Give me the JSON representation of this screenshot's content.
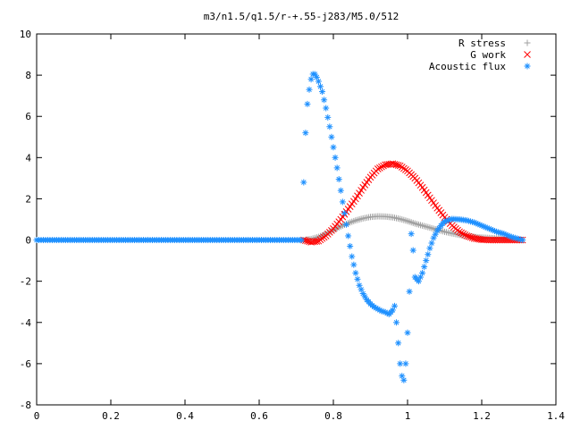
{
  "chart_data": {
    "type": "scatter",
    "title": "m3/n1.5/q1.5/r-+.55-j283/M5.0/512",
    "xlabel": "",
    "ylabel": "",
    "xlim": [
      0,
      1.4
    ],
    "ylim": [
      -8,
      10
    ],
    "xticks": [
      "0",
      "0.2",
      "0.4",
      "0.6",
      "0.8",
      "1",
      "1.2",
      "1.4"
    ],
    "yticks": [
      "-8",
      "-6",
      "-4",
      "-2",
      "0",
      "2",
      "4",
      "6",
      "8",
      "10"
    ],
    "grid": false,
    "legend_position": "top-right",
    "series": [
      {
        "name": "R stress",
        "marker": "+",
        "color": "#a0a0a0",
        "x": [
          0.72,
          0.74,
          0.76,
          0.78,
          0.8,
          0.82,
          0.84,
          0.86,
          0.88,
          0.9,
          0.92,
          0.94,
          0.96,
          0.98,
          1.0,
          1.02,
          1.04,
          1.06,
          1.08,
          1.1,
          1.12,
          1.14,
          1.16,
          1.18,
          1.2,
          1.22,
          1.24,
          1.26,
          1.28,
          1.3,
          1.31
        ],
        "y": [
          0.0,
          0.05,
          0.15,
          0.3,
          0.48,
          0.66,
          0.82,
          0.95,
          1.05,
          1.12,
          1.15,
          1.14,
          1.1,
          1.02,
          0.92,
          0.8,
          0.7,
          0.6,
          0.5,
          0.4,
          0.32,
          0.25,
          0.19,
          0.15,
          0.12,
          0.1,
          0.08,
          0.06,
          0.04,
          0.02,
          0.0
        ]
      },
      {
        "name": "G work",
        "marker": "x",
        "color": "#ff0000",
        "x": [
          0.72,
          0.74,
          0.76,
          0.78,
          0.8,
          0.82,
          0.84,
          0.86,
          0.88,
          0.9,
          0.92,
          0.94,
          0.96,
          0.98,
          1.0,
          1.02,
          1.04,
          1.06,
          1.08,
          1.1,
          1.12,
          1.14,
          1.16,
          1.18,
          1.2,
          1.22,
          1.24,
          1.26,
          1.28,
          1.3,
          1.31
        ],
        "y": [
          0.0,
          -0.1,
          -0.05,
          0.2,
          0.55,
          1.0,
          1.5,
          2.0,
          2.55,
          3.05,
          3.45,
          3.65,
          3.7,
          3.6,
          3.35,
          3.0,
          2.55,
          2.05,
          1.55,
          1.1,
          0.7,
          0.4,
          0.2,
          0.08,
          0.02,
          0.0,
          0.0,
          0.0,
          0.0,
          0.0,
          0.0
        ]
      },
      {
        "name": "Acoustic flux",
        "marker": "*",
        "color": "#1e90ff",
        "x": [
          0.72,
          0.725,
          0.73,
          0.735,
          0.74,
          0.745,
          0.75,
          0.755,
          0.76,
          0.77,
          0.78,
          0.79,
          0.8,
          0.81,
          0.82,
          0.83,
          0.84,
          0.85,
          0.86,
          0.87,
          0.88,
          0.89,
          0.9,
          0.91,
          0.92,
          0.93,
          0.94,
          0.95,
          0.96,
          0.965,
          0.97,
          0.975,
          0.98,
          0.985,
          0.99,
          0.995,
          1.0,
          1.005,
          1.01,
          1.015,
          1.02,
          1.03,
          1.04,
          1.05,
          1.06,
          1.07,
          1.08,
          1.09,
          1.1,
          1.12,
          1.14,
          1.16,
          1.18,
          1.2,
          1.22,
          1.24,
          1.26,
          1.28,
          1.3,
          1.31
        ],
        "y": [
          2.8,
          5.2,
          6.6,
          7.3,
          7.8,
          8.05,
          8.05,
          7.9,
          7.7,
          7.2,
          6.4,
          5.5,
          4.5,
          3.5,
          2.4,
          1.3,
          0.2,
          -0.8,
          -1.6,
          -2.2,
          -2.6,
          -2.9,
          -3.1,
          -3.25,
          -3.35,
          -3.45,
          -3.5,
          -3.6,
          -3.4,
          -3.2,
          -4.0,
          -5.0,
          -6.0,
          -6.6,
          -6.8,
          -6.0,
          -4.5,
          -2.5,
          0.3,
          -0.5,
          -1.8,
          -2.0,
          -1.6,
          -1.0,
          -0.4,
          0.1,
          0.45,
          0.7,
          0.9,
          1.02,
          1.0,
          0.95,
          0.85,
          0.7,
          0.55,
          0.4,
          0.3,
          0.15,
          0.05,
          0.0
        ]
      }
    ]
  }
}
